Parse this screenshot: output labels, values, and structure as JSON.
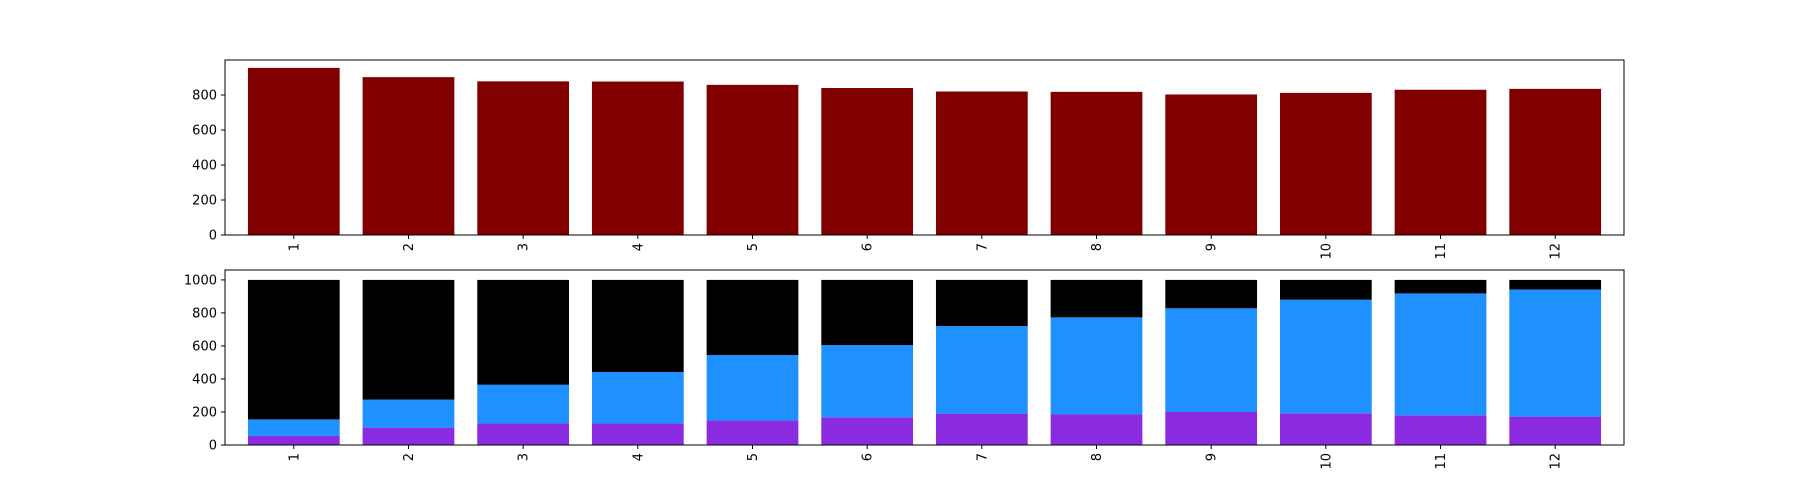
{
  "chart_data": [
    {
      "type": "bar",
      "categories": [
        "1",
        "2",
        "3",
        "4",
        "5",
        "6",
        "7",
        "8",
        "9",
        "10",
        "11",
        "12"
      ],
      "values": [
        955,
        902,
        878,
        877,
        858,
        840,
        820,
        818,
        803,
        812,
        830,
        835
      ],
      "color": "#800000",
      "title": "",
      "xlabel": "",
      "ylabel": "",
      "ylim": [
        0,
        1000
      ],
      "yticks": [
        0,
        200,
        400,
        600,
        800
      ],
      "grid": false
    },
    {
      "type": "bar",
      "stacked": true,
      "categories": [
        "1",
        "2",
        "3",
        "4",
        "5",
        "6",
        "7",
        "8",
        "9",
        "10",
        "11",
        "12"
      ],
      "series": [
        {
          "color": "#8a2be2",
          "values": [
            55,
            105,
            130,
            130,
            148,
            168,
            190,
            185,
            200,
            192,
            180,
            172
          ]
        },
        {
          "color": "#1e90ff",
          "values": [
            100,
            170,
            235,
            312,
            397,
            437,
            530,
            588,
            628,
            688,
            738,
            770
          ]
        },
        {
          "color": "#000000",
          "values": [
            845,
            725,
            635,
            558,
            455,
            395,
            280,
            227,
            172,
            120,
            82,
            58
          ]
        }
      ],
      "title": "",
      "xlabel": "",
      "ylabel": "",
      "ylim": [
        0,
        1060
      ],
      "yticks": [
        0,
        200,
        400,
        600,
        800,
        1000
      ],
      "grid": false
    }
  ]
}
